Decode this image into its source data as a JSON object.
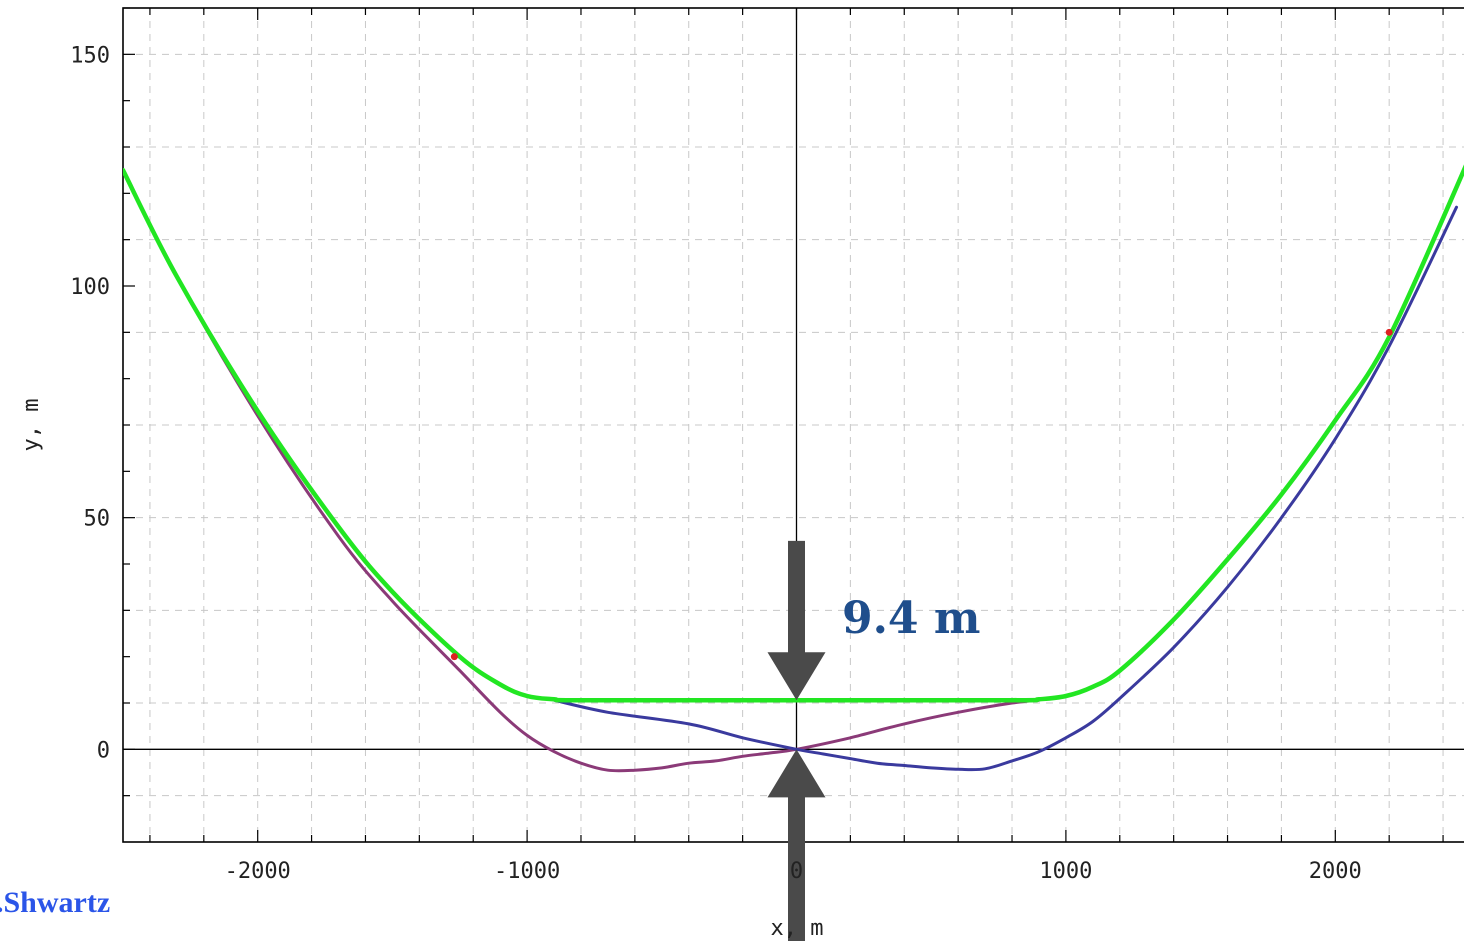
{
  "chart_data": {
    "type": "line",
    "title": "",
    "xlabel": "x, m",
    "ylabel": "y, m",
    "xlim": [
      -2500,
      2500
    ],
    "ylim": [
      -20,
      160
    ],
    "x_ticks": [
      -2000,
      -1000,
      0,
      1000,
      2000
    ],
    "x_tick_labels": [
      "-2000",
      "-1000",
      "0",
      "1000",
      "2000"
    ],
    "y_ticks": [
      0,
      50,
      100,
      150
    ],
    "y_tick_labels": [
      "0",
      "50",
      "100",
      "150"
    ],
    "grid": true,
    "series": [
      {
        "color": "#8b3a78",
        "x": [
          -2500,
          -2300,
          -2000,
          -1700,
          -1500,
          -1250,
          -1100,
          -1000,
          -900,
          -800,
          -700,
          -600,
          -500,
          -400,
          -300,
          -200,
          -100,
          0,
          200,
          400,
          600,
          800,
          900
        ],
        "y": [
          125,
          102,
          72,
          46,
          32,
          17,
          8,
          3,
          -0.5,
          -3,
          -4.5,
          -4.5,
          -4,
          -3,
          -2.5,
          -1.5,
          -0.8,
          0,
          2.5,
          5.5,
          8,
          10,
          10.6
        ]
      },
      {
        "color": "#3a3a9e",
        "x": [
          -900,
          -700,
          -400,
          -200,
          0,
          100,
          200,
          300,
          400,
          500,
          600,
          700,
          800,
          900,
          1000,
          1100,
          1200,
          1400,
          1600,
          1800,
          2000,
          2200,
          2450
        ],
        "y": [
          10.6,
          8,
          5.5,
          2.5,
          0,
          -1,
          -2,
          -3,
          -3.5,
          -4,
          -4.3,
          -4.2,
          -2.5,
          -0.5,
          2.5,
          6,
          11,
          22,
          35,
          50,
          67,
          87,
          117
        ]
      },
      {
        "color": "#22e622",
        "x": [
          -2500,
          -2300,
          -2000,
          -1700,
          -1500,
          -1250,
          -1100,
          -1000,
          -900,
          -800,
          0,
          800,
          900,
          1000,
          1100,
          1200,
          1400,
          1600,
          1800,
          2000,
          2200,
          2500
        ],
        "y": [
          125,
          102,
          73,
          48,
          34,
          20,
          14,
          11.5,
          10.8,
          10.6,
          10.6,
          10.6,
          10.8,
          11.5,
          13.5,
          17,
          28,
          41,
          55,
          71,
          89,
          128
        ]
      }
    ],
    "markers": [
      {
        "x": -1270,
        "y": 20,
        "color": "#dd2222"
      },
      {
        "x": 2200,
        "y": 90,
        "color": "#dd2222"
      }
    ],
    "annotations": [
      {
        "text": "9.4 m",
        "color": "#1f4e8c",
        "x": 450,
        "y": 28
      },
      {
        "text": ".Shwartz",
        "color": "#2b55e8"
      }
    ],
    "arrows": [
      {
        "direction": "down",
        "x": 0,
        "from_y": 45,
        "to_y": 10.6,
        "color": "#4a4a4a"
      },
      {
        "direction": "up",
        "x": 0,
        "from_y": -42,
        "to_y": 0,
        "color": "#4a4a4a"
      }
    ]
  }
}
